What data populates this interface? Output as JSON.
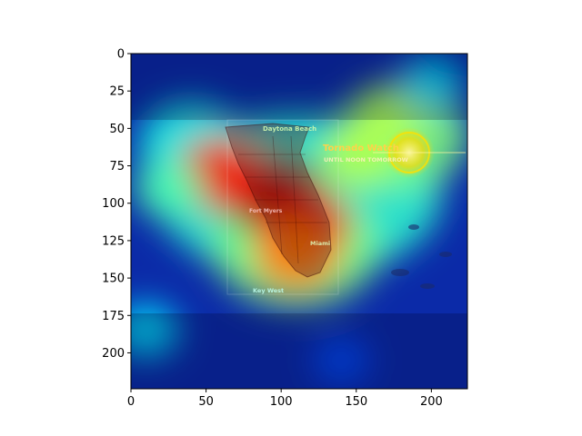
{
  "chart_data": {
    "type": "heatmap",
    "title": "",
    "xlabel": "",
    "ylabel": "",
    "xlim": [
      0,
      224
    ],
    "ylim": [
      224,
      0
    ],
    "xticks": [
      0,
      50,
      100,
      150,
      200
    ],
    "yticks": [
      0,
      25,
      50,
      75,
      100,
      125,
      150,
      175,
      200
    ],
    "colormap": "jet",
    "grid": false,
    "background_image_description_free": true,
    "overlay_text": {
      "station": "Daytona Beach",
      "headline": "Tornado Watch",
      "subline": "UNTIL NOON TOMORROW",
      "city_1": "Fort Myers",
      "city_2": "Miami",
      "city_3": "Key West"
    },
    "hotspots": [
      {
        "x": 95,
        "y": 95,
        "intensity": 1.0
      },
      {
        "x": 115,
        "y": 115,
        "intensity": 0.9
      },
      {
        "x": 60,
        "y": 80,
        "intensity": 0.85
      },
      {
        "x": 110,
        "y": 135,
        "intensity": 0.75
      },
      {
        "x": 175,
        "y": 40,
        "intensity": 0.55
      },
      {
        "x": 150,
        "y": 70,
        "intensity": 0.55
      },
      {
        "x": 25,
        "y": 90,
        "intensity": 0.45
      },
      {
        "x": 200,
        "y": 20,
        "intensity": 0.35
      },
      {
        "x": 140,
        "y": 205,
        "intensity": 0.2
      },
      {
        "x": 10,
        "y": 185,
        "intensity": 0.35
      }
    ],
    "colors": {
      "low": "#00008f",
      "high": "#ff0000"
    }
  }
}
